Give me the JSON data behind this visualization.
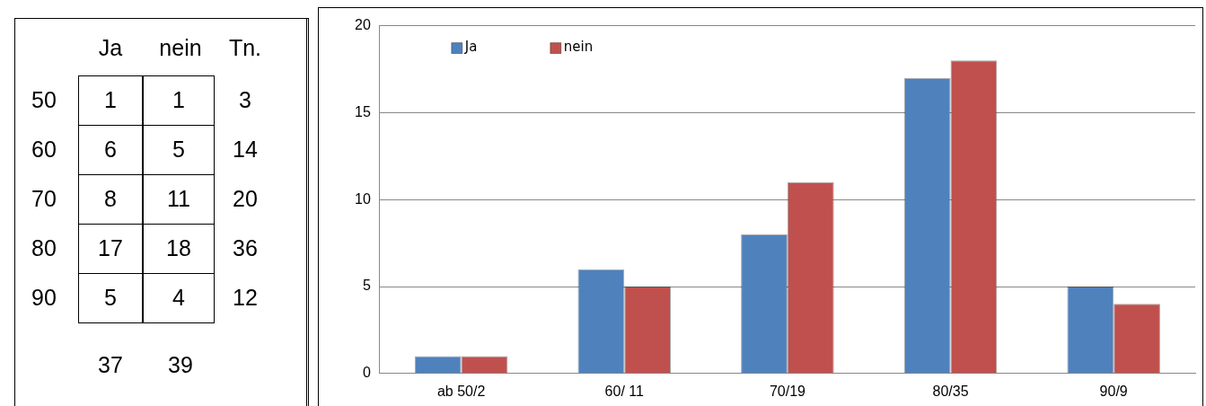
{
  "chart_data": [
    {
      "type": "heatmap",
      "categories": [
        "Ja",
        "nein"
      ],
      "y_categories": [
        "50",
        "60",
        "70",
        "80",
        "90"
      ],
      "y2_categories": [
        "3",
        "14",
        "20",
        "36",
        "12"
      ],
      "cells": [
        [
          1,
          1
        ],
        [
          6,
          5
        ],
        [
          8,
          11
        ],
        [
          17,
          18
        ],
        [
          5,
          4
        ]
      ],
      "annotations": [
        "Tn.",
        "37",
        "39"
      ],
      "data_labels": true
    },
    {
      "type": "bar",
      "categories": [
        "ab 50/2",
        "60/ 11",
        "70/19",
        "80/35",
        "90/9"
      ],
      "series": [
        {
          "name": "Ja",
          "color": "#4f81bd",
          "values": [
            1,
            6,
            8,
            17,
            5
          ]
        },
        {
          "name": "nein",
          "color": "#c0504d",
          "values": [
            1,
            5,
            11,
            18,
            4
          ]
        }
      ],
      "ylim": [
        0,
        20
      ],
      "yticks": [
        0,
        5,
        10,
        15,
        20
      ],
      "grid": "y",
      "legend": "top left"
    }
  ]
}
